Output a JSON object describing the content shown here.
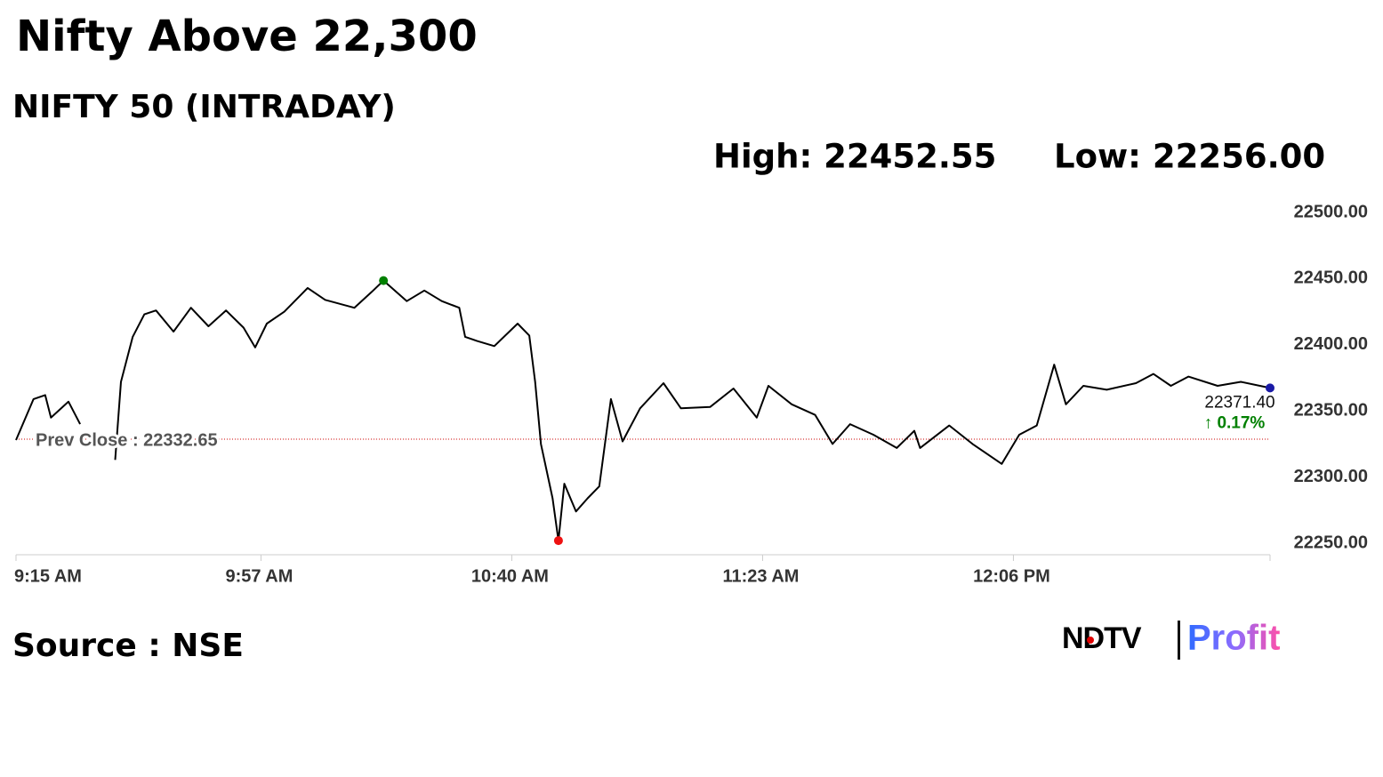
{
  "chart_data": {
    "type": "line",
    "title": "Nifty Above 22,300",
    "subtitle": "NIFTY 50 (INTRADAY)",
    "high_label": "High: 22452.55",
    "low_label": "Low: 22256.00",
    "source": "Source : NSE",
    "color": "#000000",
    "x": [
      "9:15 AM",
      "9:18 AM",
      "9:20 AM",
      "9:21 AM",
      "9:24 AM",
      "9:26 AM",
      "9:29 AM",
      "9:32 AM",
      "9:33 AM",
      "9:35 AM",
      "9:37 AM",
      "9:39 AM",
      "9:42 AM",
      "9:45 AM",
      "9:48 AM",
      "9:51 AM",
      "9:54 AM",
      "9:56 AM",
      "9:58 AM",
      "10:01 AM",
      "10:05 AM",
      "10:08 AM",
      "10:13 AM",
      "10:16 AM",
      "10:18 AM",
      "10:22 AM",
      "10:25 AM",
      "10:28 AM",
      "10:31 AM",
      "10:32 AM",
      "10:34 AM",
      "10:37 AM",
      "10:41 AM",
      "10:43 AM",
      "10:44 AM",
      "10:45 AM",
      "10:47 AM",
      "10:48 AM",
      "10:49 AM",
      "10:51 AM",
      "10:53 AM",
      "10:55 AM",
      "10:57 AM",
      "10:59 AM",
      "11:02 AM",
      "11:06 AM",
      "11:09 AM",
      "11:14 AM",
      "11:18 AM",
      "11:22 AM",
      "11:24 AM",
      "11:28 AM",
      "11:32 AM",
      "11:35 AM",
      "11:38 AM",
      "11:42 AM",
      "11:46 AM",
      "11:49 AM",
      "11:50 AM",
      "11:55 AM",
      "11:59 AM",
      "12:04 PM",
      "12:07 PM",
      "12:10 PM",
      "12:13 PM",
      "12:15 PM",
      "12:18 PM",
      "12:22 PM",
      "12:27 PM",
      "12:30 PM",
      "12:33 PM",
      "12:36 PM",
      "12:41 PM",
      "12:45 PM",
      "12:50 PM"
    ],
    "values": [
      22332,
      22363,
      22366,
      22349,
      22361,
      22344,
      null,
      22317,
      22376,
      22410,
      22427,
      22430,
      22414,
      22432,
      22418,
      22430,
      22417,
      22402,
      22420,
      22429,
      22447,
      22438,
      22432,
      22444,
      22452.55,
      22437,
      22445,
      22437,
      22432,
      22410,
      22407,
      22403,
      22420,
      22411,
      22376,
      22329,
      22288,
      22256,
      22299,
      22278,
      22288,
      22297,
      22363,
      22331,
      22356,
      22375,
      22356,
      22357,
      22371,
      22349,
      22373,
      22359,
      22351,
      22329,
      22344,
      22336,
      22326,
      22339,
      22326,
      22343,
      22329,
      22314,
      22336,
      22343,
      22389,
      22359,
      22373,
      22370,
      22375,
      22382,
      22373,
      22380,
      22373,
      22376,
      22371.4
    ],
    "xlim": [
      "9:15 AM",
      "12:50 PM"
    ],
    "xticks": [
      "9:15 AM",
      "9:57 AM",
      "10:40 AM",
      "11:23 AM",
      "12:06 PM"
    ],
    "ylim": [
      22250,
      22500
    ],
    "yticks": [
      {
        "value": 22250,
        "label": "22250.00"
      },
      {
        "value": 22300,
        "label": "22300.00"
      },
      {
        "value": 22350,
        "label": "22350.00"
      },
      {
        "value": 22400,
        "label": "22400.00"
      },
      {
        "value": 22450,
        "label": "22450.00"
      },
      {
        "value": 22500,
        "label": "22500.00"
      }
    ],
    "prev_close": {
      "value": 22332.65,
      "label": "Prev Close : 22332.65"
    },
    "prev_close_color": "#cc0000",
    "high_color": "#008000",
    "low_color": "#ee1111",
    "last_color": "#1a1aa6",
    "last_label": "22371.40",
    "change_label": "↑ 0.17%",
    "change_color": "#008000"
  },
  "logo": {
    "brand": "NDTV",
    "product": "Profit"
  }
}
